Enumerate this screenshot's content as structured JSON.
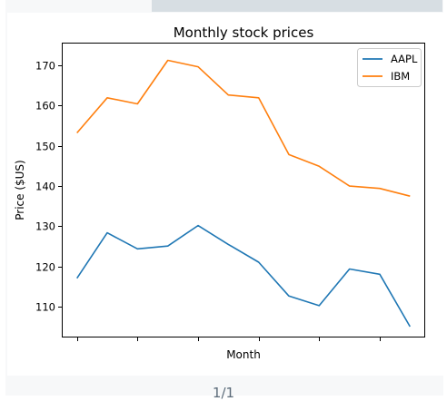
{
  "pager": {
    "label": "1/1"
  },
  "chart_data": {
    "type": "line",
    "title": "Monthly stock prices",
    "xlabel": "Month",
    "ylabel": "Price ($US)",
    "x": [
      1,
      2,
      3,
      4,
      5,
      6,
      7,
      8,
      9,
      10,
      11,
      12
    ],
    "xlim": [
      0.5,
      12.5
    ],
    "xticks": [
      1,
      3,
      5,
      7,
      9,
      11
    ],
    "xtick_labels": [
      "",
      "",
      "",
      "",
      "",
      ""
    ],
    "ylim": [
      102.4,
      175.6
    ],
    "yticks": [
      110,
      120,
      130,
      140,
      150,
      160,
      170
    ],
    "ytick_labels": [
      "110",
      "120",
      "130",
      "140",
      "150",
      "160",
      "170"
    ],
    "grid": false,
    "legend_position": "top-right",
    "series": [
      {
        "name": "AAPL",
        "color": "#1f77b4",
        "values": [
          117.1,
          128.4,
          124.4,
          125.1,
          130.2,
          125.5,
          121.1,
          112.7,
          110.3,
          119.4,
          118.1,
          105.1
        ]
      },
      {
        "name": "IBM",
        "color": "#ff7f0e",
        "values": [
          153.2,
          161.9,
          160.4,
          171.2,
          169.6,
          162.6,
          161.9,
          147.8,
          144.9,
          140.0,
          139.4,
          137.5
        ]
      }
    ]
  }
}
